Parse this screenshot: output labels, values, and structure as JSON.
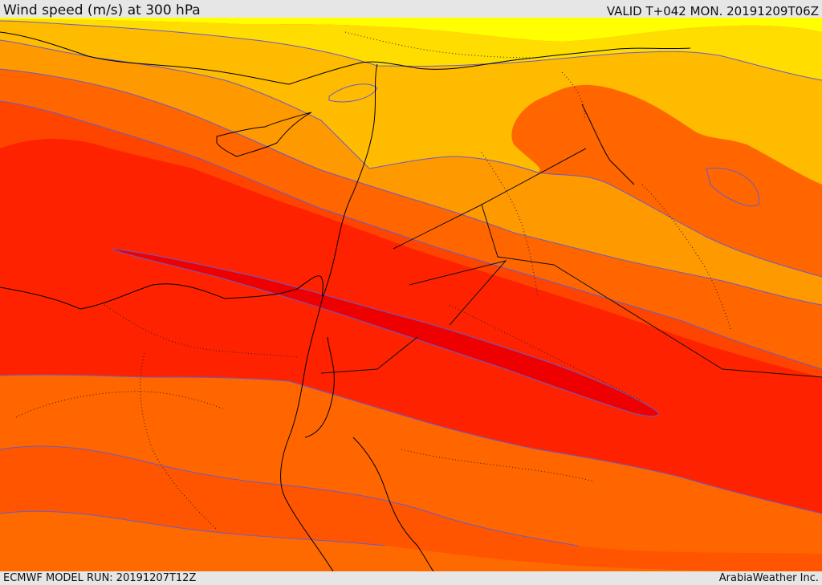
{
  "header": {
    "title": "Wind speed (m/s) at 300 hPa",
    "valid": "VALID T+042 MON. 20191209T06Z"
  },
  "footer": {
    "model_run": "ECMWF MODEL RUN: 20191207T12Z",
    "credit": "ArabiaWeather Inc."
  },
  "colors": {
    "band_1": "#ffff00",
    "band_2": "#ffdd00",
    "band_3": "#ffbb00",
    "band_4": "#ff9900",
    "band_5": "#ff6600",
    "band_6": "#ff4400",
    "band_7": "#ff2a00",
    "band_8": "#ff1100",
    "band_9": "#ee0000",
    "contour": "#6a5acd",
    "coastline": "#000000"
  }
}
